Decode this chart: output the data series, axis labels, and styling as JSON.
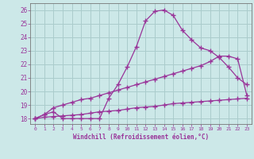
{
  "bg_color": "#cce8e8",
  "grid_color": "#aacccc",
  "line_color": "#993399",
  "xlabel": "Windchill (Refroidissement éolien,°C)",
  "ylabel_ticks": [
    18,
    19,
    20,
    21,
    22,
    23,
    24,
    25,
    26
  ],
  "xlim": [
    -0.5,
    23.5
  ],
  "ylim": [
    17.6,
    26.5
  ],
  "curve1_x": [
    0,
    1,
    2,
    3,
    4,
    5,
    6,
    7,
    8,
    9,
    10,
    11,
    12,
    13,
    14,
    15,
    16,
    17,
    18,
    19,
    20,
    21,
    22,
    23
  ],
  "curve1_y": [
    18.0,
    18.3,
    18.5,
    18.0,
    18.0,
    18.0,
    18.0,
    18.0,
    19.5,
    20.5,
    21.8,
    23.3,
    25.2,
    25.9,
    26.0,
    25.6,
    24.5,
    23.8,
    23.2,
    23.0,
    22.5,
    21.8,
    21.0,
    20.5
  ],
  "curve2_x": [
    0,
    1,
    2,
    3,
    4,
    5,
    6,
    7,
    8,
    9,
    10,
    11,
    12,
    13,
    14,
    15,
    16,
    17,
    18,
    19,
    20,
    21,
    22,
    23
  ],
  "curve2_y": [
    18.0,
    18.3,
    18.8,
    19.0,
    19.2,
    19.4,
    19.5,
    19.7,
    19.9,
    20.1,
    20.3,
    20.5,
    20.7,
    20.9,
    21.1,
    21.3,
    21.5,
    21.7,
    21.9,
    22.2,
    22.6,
    22.6,
    22.4,
    19.7
  ],
  "curve3_x": [
    0,
    1,
    2,
    3,
    4,
    5,
    6,
    7,
    8,
    9,
    10,
    11,
    12,
    13,
    14,
    15,
    16,
    17,
    18,
    19,
    20,
    21,
    22,
    23
  ],
  "curve3_y": [
    18.0,
    18.1,
    18.15,
    18.2,
    18.25,
    18.3,
    18.4,
    18.5,
    18.55,
    18.6,
    18.7,
    18.8,
    18.85,
    18.9,
    19.0,
    19.1,
    19.15,
    19.2,
    19.25,
    19.3,
    19.35,
    19.4,
    19.45,
    19.5
  ],
  "marker": "+",
  "markersize": 4,
  "linewidth": 0.9
}
